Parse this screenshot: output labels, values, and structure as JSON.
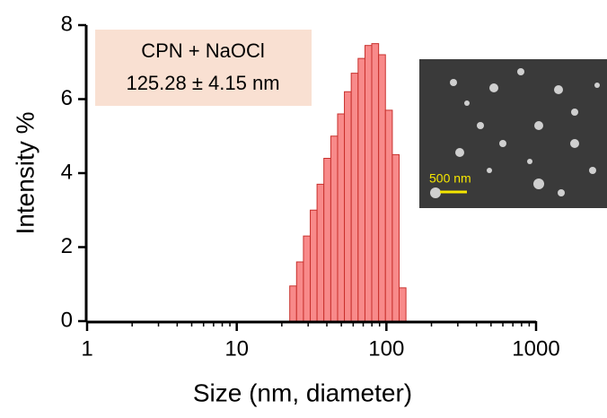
{
  "chart_data": {
    "type": "histogram",
    "xlabel": "Size  (nm, diameter)",
    "ylabel": "Intensity %",
    "annotation": [
      "CPN + NaOCl",
      "125.28 ± 4.15 nm"
    ],
    "bins": [
      22.6,
      25.1,
      27.9,
      31.0,
      34.4,
      38.2,
      42.5,
      47.2,
      52.4,
      58.2,
      64.7,
      71.9,
      79.8,
      88.7,
      98.5,
      109.5,
      121.6,
      135.1
    ],
    "counts": [
      0.95,
      1.6,
      2.3,
      3.0,
      3.7,
      4.4,
      5.0,
      5.6,
      6.2,
      6.7,
      7.1,
      7.45,
      7.5,
      7.2,
      5.7,
      4.5,
      0.9
    ],
    "color": "#f88a8a",
    "edge_color": "#c8302c",
    "xscale": "log",
    "xlim": [
      1,
      1000
    ],
    "xticks": [
      1,
      10,
      100,
      1000
    ],
    "minor_ticks": true,
    "ylim": [
      0,
      8
    ],
    "yticks": [
      0,
      2,
      4,
      6,
      8
    ],
    "inset": {
      "scale_label": "500 nm"
    }
  }
}
